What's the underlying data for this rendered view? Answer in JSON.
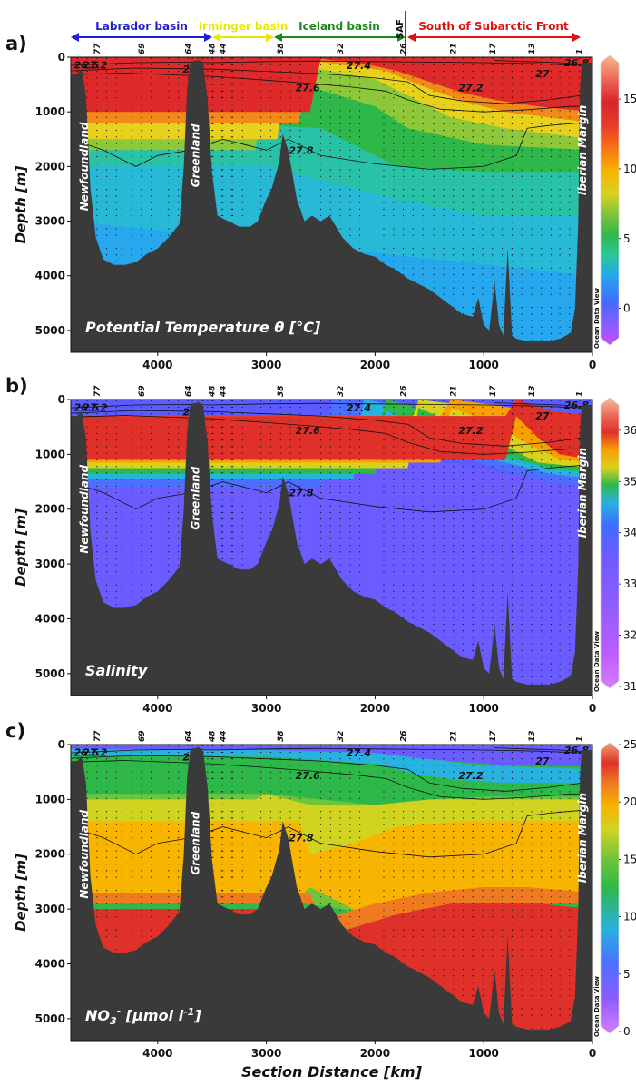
{
  "colors": {
    "labrador": "#1f1fd6",
    "irminger": "#e8e800",
    "iceland": "#1a8a1a",
    "south": "#e01010",
    "bathymetry": "#3a3a3a"
  },
  "basins": {
    "labrador": "Labrador basin",
    "irminger": "Irminger basin",
    "iceland": "Iceland basin",
    "saf": "SAF",
    "south": "South of Subarctic Front"
  },
  "chart_data": [
    {
      "panel": "a)",
      "type": "heatmap",
      "variable_label": "Potential Temperature θ [°C]",
      "ylabel": "Depth [m]",
      "xlabel": "",
      "x_ticks": [
        "4000",
        "3000",
        "2000",
        "1000",
        "0"
      ],
      "y_ticks": [
        "0",
        "1000",
        "2000",
        "3000",
        "4000",
        "5000"
      ],
      "xlim": [
        4800,
        0
      ],
      "ylim": [
        0,
        5400
      ],
      "colorbar": {
        "ticks": [
          "15",
          "10",
          "5",
          "0"
        ],
        "range": [
          -2.5,
          18
        ]
      },
      "stations": [
        "77",
        "69",
        "64",
        "48",
        "44",
        "38",
        "32",
        "26",
        "21",
        "17",
        "13",
        "1"
      ],
      "isopycnals": [
        "26.6",
        "27.2",
        "27",
        "27.4",
        "27.2",
        "27.6",
        "27.8",
        "27",
        "26.8"
      ],
      "regions": [
        "Newfoundland",
        "Greenland",
        "Iberian Margin"
      ],
      "watermark": "Ocean Data View"
    },
    {
      "panel": "b)",
      "type": "heatmap",
      "variable_label": "Salinity",
      "ylabel": "Depth [m]",
      "xlabel": "",
      "x_ticks": [
        "4000",
        "3000",
        "2000",
        "1000",
        "0"
      ],
      "y_ticks": [
        "0",
        "1000",
        "2000",
        "3000",
        "4000",
        "5000"
      ],
      "xlim": [
        4800,
        0
      ],
      "ylim": [
        0,
        5400
      ],
      "colorbar": {
        "ticks": [
          "36",
          "35",
          "34",
          "33",
          "32",
          "31"
        ],
        "range": [
          31,
          36.6
        ]
      },
      "stations": [
        "77",
        "69",
        "64",
        "48",
        "44",
        "38",
        "32",
        "26",
        "21",
        "17",
        "13",
        "1"
      ],
      "isopycnals": [
        "26.6",
        "27.2",
        "27",
        "27.4",
        "27.2",
        "27.6",
        "27.8",
        "27",
        "26.8"
      ],
      "regions": [
        "Newfoundland",
        "Greenland",
        "Iberian Margin"
      ],
      "watermark": "Ocean Data View"
    },
    {
      "panel": "c)",
      "type": "heatmap",
      "variable_label_main": "NO",
      "variable_label_sub": "3",
      "variable_label_sup": "-",
      "variable_label_unit": " [μmol l",
      "variable_label_unit_sup": "-1",
      "variable_label_end": "]",
      "ylabel": "Depth [m]",
      "xlabel": "Section Distance [km]",
      "x_ticks": [
        "4000",
        "3000",
        "2000",
        "1000",
        "0"
      ],
      "y_ticks": [
        "0",
        "1000",
        "2000",
        "3000",
        "4000",
        "5000"
      ],
      "xlim": [
        4800,
        0
      ],
      "ylim": [
        0,
        5400
      ],
      "colorbar": {
        "ticks": [
          "25",
          "20",
          "15",
          "10",
          "5",
          "0"
        ],
        "range": [
          0,
          25
        ]
      },
      "stations": [
        "77",
        "69",
        "64",
        "48",
        "44",
        "38",
        "32",
        "26",
        "21",
        "17",
        "13",
        "1"
      ],
      "isopycnals": [
        "26.6",
        "27.2",
        "27",
        "27.4",
        "27.2",
        "27.6",
        "27.8",
        "27",
        "26.8"
      ],
      "regions": [
        "Newfoundland",
        "Greenland",
        "Iberian Margin"
      ],
      "watermark": "Ocean Data View"
    }
  ]
}
